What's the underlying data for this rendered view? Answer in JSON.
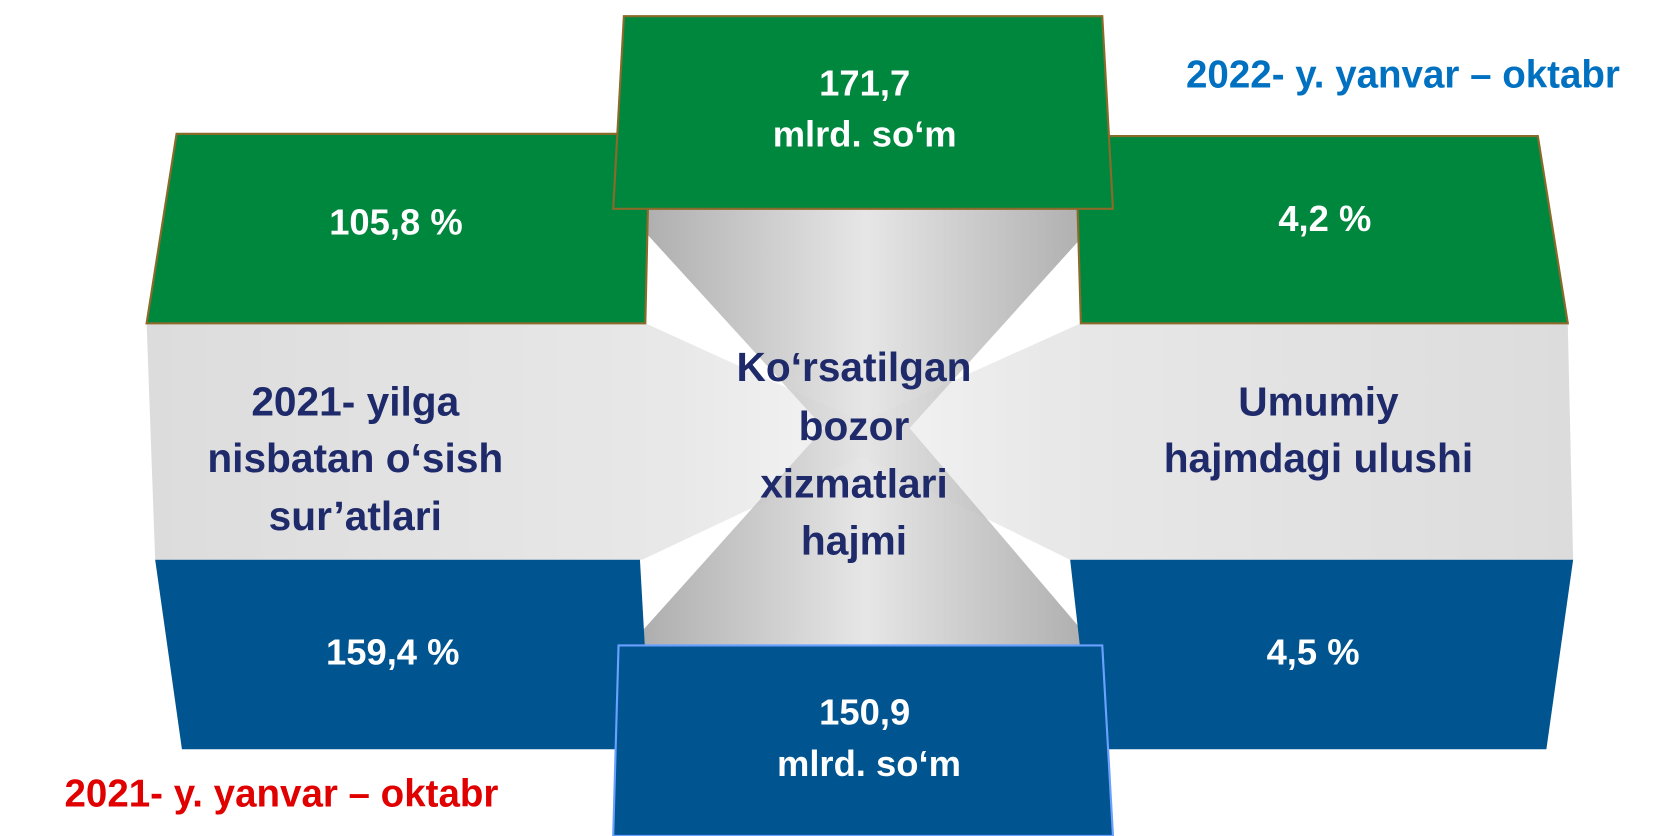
{
  "periods": {
    "current": "2022- y. yanvar – oktabr",
    "previous": "2021- y. yanvar – oktabr"
  },
  "center_label": [
    "Ko‘rsatilgan",
    "bozor",
    "xizmatlari",
    "hajmi"
  ],
  "left_label": [
    "2021- yilga",
    "nisbatan o‘sish",
    "sur’atlari"
  ],
  "right_label": [
    "Umumiy",
    "hajmdagi ulushi"
  ],
  "current": {
    "volume": [
      "171,7",
      "mlrd. so‘m"
    ],
    "growth": "105,8 %",
    "share": "4,2 %"
  },
  "previous": {
    "volume": [
      "150,9",
      "mlrd. so‘m"
    ],
    "growth": "159,4 %",
    "share": "4,5 %"
  }
}
